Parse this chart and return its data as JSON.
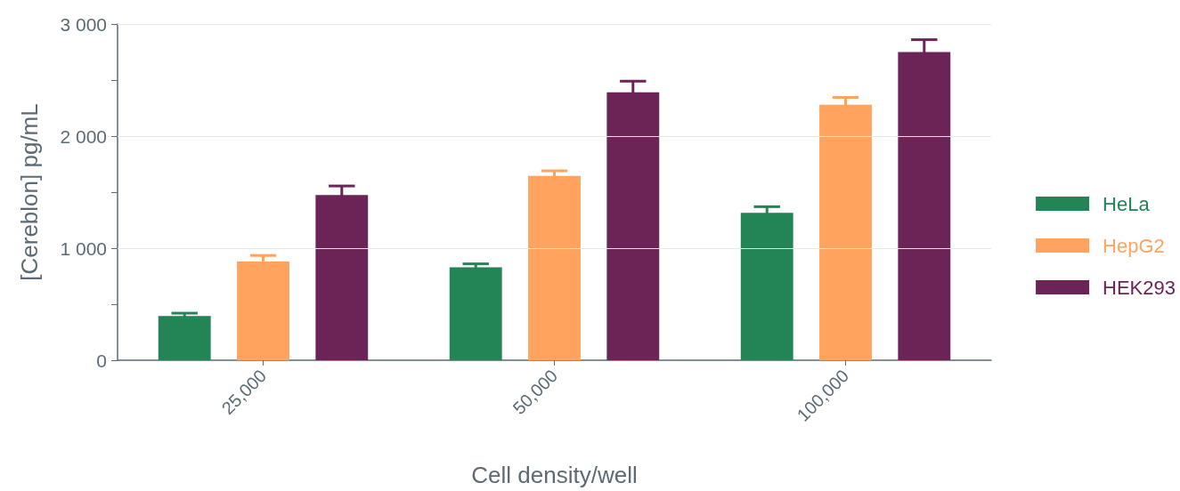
{
  "chart_data": {
    "type": "bar",
    "xlabel": "Cell density/well",
    "ylabel": "[Cereblon] pg/mL",
    "categories": [
      "25,000",
      "50,000",
      "100,000"
    ],
    "series": [
      {
        "name": "HeLa",
        "color": "#238456",
        "values": [
          395,
          830,
          1315
        ],
        "errors": [
          25,
          30,
          55
        ]
      },
      {
        "name": "HepG2",
        "color": "#ffa35f",
        "values": [
          880,
          1645,
          2280
        ],
        "errors": [
          55,
          45,
          65
        ]
      },
      {
        "name": "HEK293",
        "color": "#6c2457",
        "values": [
          1475,
          2390,
          2750
        ],
        "errors": [
          80,
          100,
          110
        ]
      }
    ],
    "ylim": [
      0,
      3000
    ],
    "yticks": [
      {
        "value": 0,
        "label": "0"
      },
      {
        "value": 500,
        "label": null
      },
      {
        "value": 1000,
        "label": "1 000"
      },
      {
        "value": 1500,
        "label": null
      },
      {
        "value": 2000,
        "label": "2 000"
      },
      {
        "value": 2500,
        "label": null
      },
      {
        "value": 3000,
        "label": "3 000"
      }
    ],
    "grid": "y",
    "legend": "right"
  }
}
